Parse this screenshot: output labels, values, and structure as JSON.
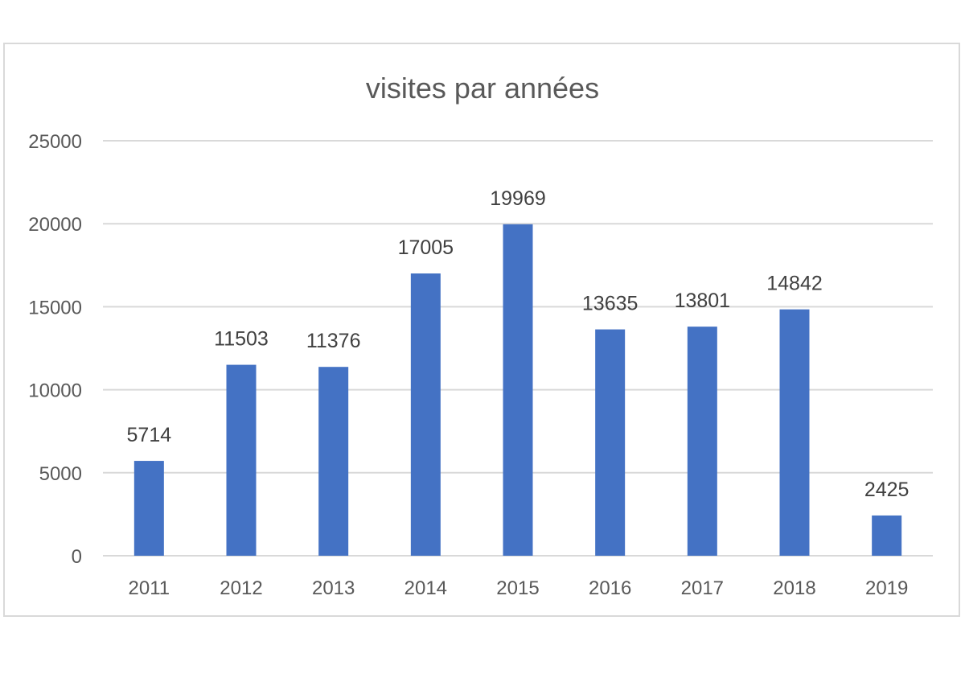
{
  "chart_data": {
    "type": "bar",
    "title": "visites par années",
    "xlabel": "",
    "ylabel": "",
    "categories": [
      "2011",
      "2012",
      "2013",
      "2014",
      "2015",
      "2016",
      "2017",
      "2018",
      "2019"
    ],
    "values": [
      5714,
      11503,
      11376,
      17005,
      19969,
      13635,
      13801,
      14842,
      2425
    ],
    "ylim": [
      0,
      25000
    ],
    "yticks": [
      0,
      5000,
      10000,
      15000,
      20000,
      25000
    ],
    "grid": true,
    "legend": "none",
    "data_labels": true,
    "colors": {
      "bar": "#4472C4",
      "grid": "#d9d9d9",
      "text": "#595959"
    }
  }
}
